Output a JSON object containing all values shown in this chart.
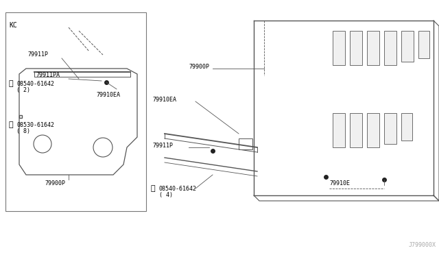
{
  "bg_color": "#ffffff",
  "border_color": "#888888",
  "line_color": "#555555",
  "dark_line": "#222222",
  "fig_width": 6.4,
  "fig_height": 3.72,
  "dpi": 100,
  "watermark": "J799000X",
  "box_label": "KC",
  "labels": {
    "79911P_left_top": "79911P",
    "08540_left": "08540-61642",
    "circle_left": "( 2)",
    "79911PA": "79911PA",
    "79910EA_left": "79910EA",
    "08530": "08530-61642",
    "circle_08530": "( 8)",
    "79900P_left": "79900P",
    "79900P_right": "79900P",
    "79910EA_right": "79910EA",
    "79911P_right": "79911P",
    "08540_right": "08540-61642",
    "circle_right": "( 4)",
    "79910E": "79910E"
  }
}
